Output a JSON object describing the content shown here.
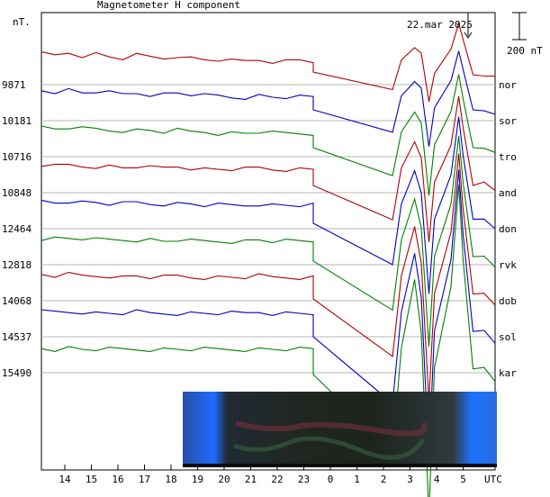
{
  "chart_data": {
    "type": "line",
    "title": "Magnetometer H component",
    "ylabel": "nT.",
    "date_label": "22.mar 2025",
    "scale_bar_label": "200 nT",
    "x_unit_label": "UTC",
    "x_tick_labels": [
      "14",
      "15",
      "16",
      "17",
      "18",
      "19",
      "20",
      "21",
      "22",
      "23",
      "0",
      "1",
      "2",
      "3",
      "4",
      "5"
    ],
    "series": [
      {
        "name": "nor",
        "baseline": "9871",
        "color": "#b00000",
        "y0": 68,
        "lead": [
          -5,
          -4,
          -6,
          -4,
          -5,
          -3,
          -2,
          -4,
          -3,
          -2,
          -4,
          -2,
          -1,
          -1,
          0,
          0,
          -1,
          0,
          0,
          -1,
          0
        ],
        "dip": [
          [
            0.0,
            -0.5
          ],
          [
            0.72,
            -1.0
          ],
          [
            0.8,
            0.0
          ],
          [
            0.92,
            0.6
          ],
          [
            0.98,
            0.3
          ],
          [
            1.05,
            -1.6
          ],
          [
            1.1,
            -0.4
          ],
          [
            1.25,
            0.4
          ],
          [
            1.32,
            1.5
          ],
          [
            1.36,
            0.8
          ],
          [
            1.45,
            -0.6
          ],
          [
            1.55,
            -0.5
          ],
          [
            1.65,
            -0.6
          ]
        ]
      },
      {
        "name": "sor",
        "baseline": "10181",
        "color": "#0000c0",
        "y0": 108,
        "lead": [
          -5,
          -4,
          -5,
          -3,
          -4,
          -3,
          -2,
          -3,
          -2,
          -2,
          -3,
          -2,
          -1,
          -1,
          0,
          0,
          -1,
          0,
          0,
          0,
          0
        ],
        "dip": [
          [
            0.0,
            -0.5
          ],
          [
            0.72,
            -1.1
          ],
          [
            0.8,
            0.0
          ],
          [
            0.92,
            0.6
          ],
          [
            0.98,
            0.3
          ],
          [
            1.05,
            -1.7
          ],
          [
            1.1,
            -0.3
          ],
          [
            1.25,
            0.5
          ],
          [
            1.32,
            1.6
          ],
          [
            1.36,
            0.9
          ],
          [
            1.45,
            -0.5
          ],
          [
            1.55,
            -0.4
          ],
          [
            1.65,
            -0.6
          ]
        ]
      },
      {
        "name": "tro",
        "baseline": "10716",
        "color": "#008000",
        "y0": 148,
        "lead": [
          -4,
          -3,
          -4,
          -3,
          -3,
          -2,
          -2,
          -2,
          -2,
          -1,
          -2,
          -1,
          -1,
          0,
          0,
          0,
          -1,
          0,
          0,
          0,
          0
        ],
        "dip": [
          [
            0.0,
            -0.5
          ],
          [
            0.72,
            -1.2
          ],
          [
            0.8,
            0.0
          ],
          [
            0.92,
            0.7
          ],
          [
            0.98,
            0.3
          ],
          [
            1.05,
            -1.9
          ],
          [
            1.1,
            -0.3
          ],
          [
            1.25,
            0.6
          ],
          [
            1.32,
            1.8
          ],
          [
            1.36,
            1.0
          ],
          [
            1.45,
            -0.5
          ],
          [
            1.55,
            -0.4
          ],
          [
            1.65,
            -0.6
          ]
        ]
      },
      {
        "name": "and",
        "baseline": "10848",
        "color": "#b00000",
        "y0": 188,
        "lead": [
          -3,
          -2,
          -3,
          -2,
          -2,
          -2,
          -1,
          -2,
          -1,
          -1,
          -2,
          -1,
          0,
          0,
          0,
          0,
          -1,
          0,
          0,
          0,
          0
        ],
        "dip": [
          [
            0.0,
            -0.5
          ],
          [
            0.72,
            -1.3
          ],
          [
            0.8,
            0.0
          ],
          [
            0.92,
            0.8
          ],
          [
            0.98,
            0.3
          ],
          [
            1.05,
            -2.0
          ],
          [
            1.1,
            -0.3
          ],
          [
            1.25,
            0.6
          ],
          [
            1.32,
            2.0
          ],
          [
            1.36,
            1.1
          ],
          [
            1.45,
            -0.5
          ],
          [
            1.55,
            -0.3
          ],
          [
            1.65,
            -0.6
          ]
        ]
      },
      {
        "name": "don",
        "baseline": "12464",
        "color": "#0000c0",
        "y0": 228,
        "lead": [
          -3,
          -2,
          -3,
          -2,
          -2,
          -1,
          -1,
          -2,
          -1,
          -1,
          -1,
          -1,
          0,
          0,
          0,
          0,
          -1,
          0,
          0,
          0,
          0
        ],
        "dip": [
          [
            0.0,
            -0.5
          ],
          [
            0.72,
            -1.4
          ],
          [
            0.8,
            0.0
          ],
          [
            0.92,
            0.9
          ],
          [
            0.98,
            0.3
          ],
          [
            1.05,
            -2.2
          ],
          [
            1.1,
            -0.3
          ],
          [
            1.25,
            0.7
          ],
          [
            1.32,
            2.2
          ],
          [
            1.36,
            1.2
          ],
          [
            1.45,
            -0.4
          ],
          [
            1.55,
            -0.3
          ],
          [
            1.65,
            -0.6
          ]
        ]
      },
      {
        "name": "rvk",
        "baseline": "12818",
        "color": "#008000",
        "y0": 268,
        "lead": [
          -2,
          -2,
          -2,
          -2,
          -1,
          -1,
          -1,
          -1,
          -1,
          0,
          -1,
          0,
          0,
          0,
          0,
          0,
          -1,
          0,
          0,
          0,
          0
        ],
        "dip": [
          [
            0.0,
            -0.5
          ],
          [
            0.72,
            -1.5
          ],
          [
            0.8,
            0.0
          ],
          [
            0.92,
            1.0
          ],
          [
            0.98,
            0.3
          ],
          [
            1.05,
            -2.4
          ],
          [
            1.1,
            -0.3
          ],
          [
            1.25,
            0.8
          ],
          [
            1.32,
            2.4
          ],
          [
            1.36,
            1.3
          ],
          [
            1.45,
            -0.4
          ],
          [
            1.55,
            -0.3
          ],
          [
            1.65,
            -0.6
          ]
        ]
      },
      {
        "name": "dob",
        "baseline": "14068",
        "color": "#b00000",
        "y0": 308,
        "lead": [
          -2,
          -1,
          -2,
          -1,
          -1,
          -1,
          0,
          -1,
          0,
          0,
          -1,
          0,
          0,
          0,
          0,
          0,
          -1,
          0,
          0,
          0,
          0
        ],
        "dip": [
          [
            0.0,
            -0.5
          ],
          [
            0.72,
            -1.6
          ],
          [
            0.8,
            0.0
          ],
          [
            0.92,
            1.1
          ],
          [
            0.98,
            0.3
          ],
          [
            1.05,
            -2.6
          ],
          [
            1.1,
            -0.3
          ],
          [
            1.25,
            0.9
          ],
          [
            1.32,
            2.6
          ],
          [
            1.36,
            1.4
          ],
          [
            1.45,
            -0.4
          ],
          [
            1.55,
            -0.3
          ],
          [
            1.65,
            -0.6
          ]
        ]
      },
      {
        "name": "sol",
        "baseline": "14537",
        "color": "#0000c0",
        "y0": 348,
        "lead": [
          -1,
          -1,
          -1,
          -1,
          0,
          0,
          0,
          -1,
          0,
          0,
          0,
          0,
          0,
          0,
          0,
          0,
          -1,
          0,
          0,
          0,
          0
        ],
        "dip": [
          [
            0.0,
            -0.5
          ],
          [
            0.72,
            -1.7
          ],
          [
            0.8,
            0.0
          ],
          [
            0.92,
            1.2
          ],
          [
            0.98,
            0.3
          ],
          [
            1.05,
            -2.8
          ],
          [
            1.1,
            -0.3
          ],
          [
            1.25,
            1.0
          ],
          [
            1.32,
            2.8
          ],
          [
            1.36,
            1.5
          ],
          [
            1.45,
            -0.4
          ],
          [
            1.55,
            -0.3
          ],
          [
            1.65,
            -0.6
          ]
        ]
      },
      {
        "name": "kar",
        "baseline": "15490",
        "color": "#008000",
        "y0": 388,
        "lead": [
          -1,
          0,
          -1,
          0,
          0,
          0,
          0,
          0,
          0,
          0,
          0,
          0,
          0,
          0,
          0,
          0,
          0,
          0,
          0,
          0,
          0
        ],
        "dip": [
          [
            0.0,
            -0.5
          ],
          [
            0.72,
            -1.8
          ],
          [
            0.8,
            0.0
          ],
          [
            0.92,
            1.3
          ],
          [
            0.98,
            0.3
          ],
          [
            1.05,
            -3.0
          ],
          [
            1.1,
            -0.3
          ],
          [
            1.25,
            1.1
          ],
          [
            1.32,
            3.0
          ],
          [
            1.36,
            1.6
          ],
          [
            1.45,
            -0.4
          ],
          [
            1.55,
            -0.3
          ],
          [
            1.65,
            -0.6
          ]
        ]
      }
    ],
    "grid": true
  }
}
